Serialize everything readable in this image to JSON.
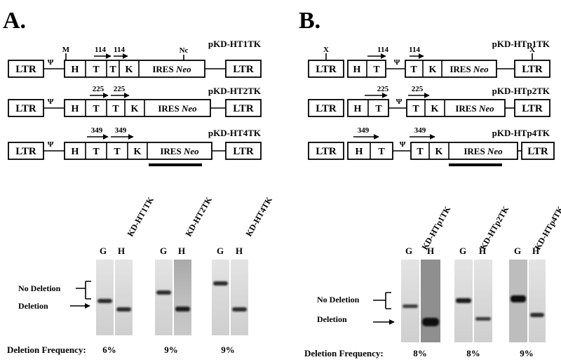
{
  "panels": {
    "A": {
      "letter": "A.",
      "constructs": [
        {
          "name": "pKD-HT1TK",
          "arrow_label": "114"
        },
        {
          "name": "pKD-HT2TK",
          "arrow_label": "225"
        },
        {
          "name": "pKD-HT4TK",
          "arrow_label": "349"
        }
      ],
      "site_m": "M",
      "site_nc": "Nc",
      "gels": [
        {
          "lane_label": "KD-HT1TK",
          "frequency": "6%"
        },
        {
          "lane_label": "KD-HT2TK",
          "frequency": "9%"
        },
        {
          "lane_label": "KD-HT4TK",
          "frequency": "9%"
        }
      ]
    },
    "B": {
      "letter": "B.",
      "constructs": [
        {
          "name": "pKD-HTp1TK",
          "arrow_label": "114"
        },
        {
          "name": "pKD-HTp2TK",
          "arrow_label": "225"
        },
        {
          "name": "pKD-HTp4TK",
          "arrow_label": "349"
        }
      ],
      "site_x": "X",
      "gels": [
        {
          "lane_label": "KD-HTp1TK",
          "frequency": "8%"
        },
        {
          "lane_label": "KD-HTp2TK",
          "frequency": "8%"
        },
        {
          "lane_label": "KD-HTp4TK",
          "frequency": "9%"
        }
      ]
    }
  },
  "elements": {
    "ltr": "LTR",
    "psi": "Ψ",
    "h": "H",
    "t": "T",
    "k": "K",
    "ires": "IRES",
    "neo": "Neo"
  },
  "gel_text": {
    "lane_g": "G",
    "lane_h": "H",
    "no_deletion": "No Deletion",
    "deletion": "Deletion",
    "frequency_label": "Deletion Frequency:"
  }
}
